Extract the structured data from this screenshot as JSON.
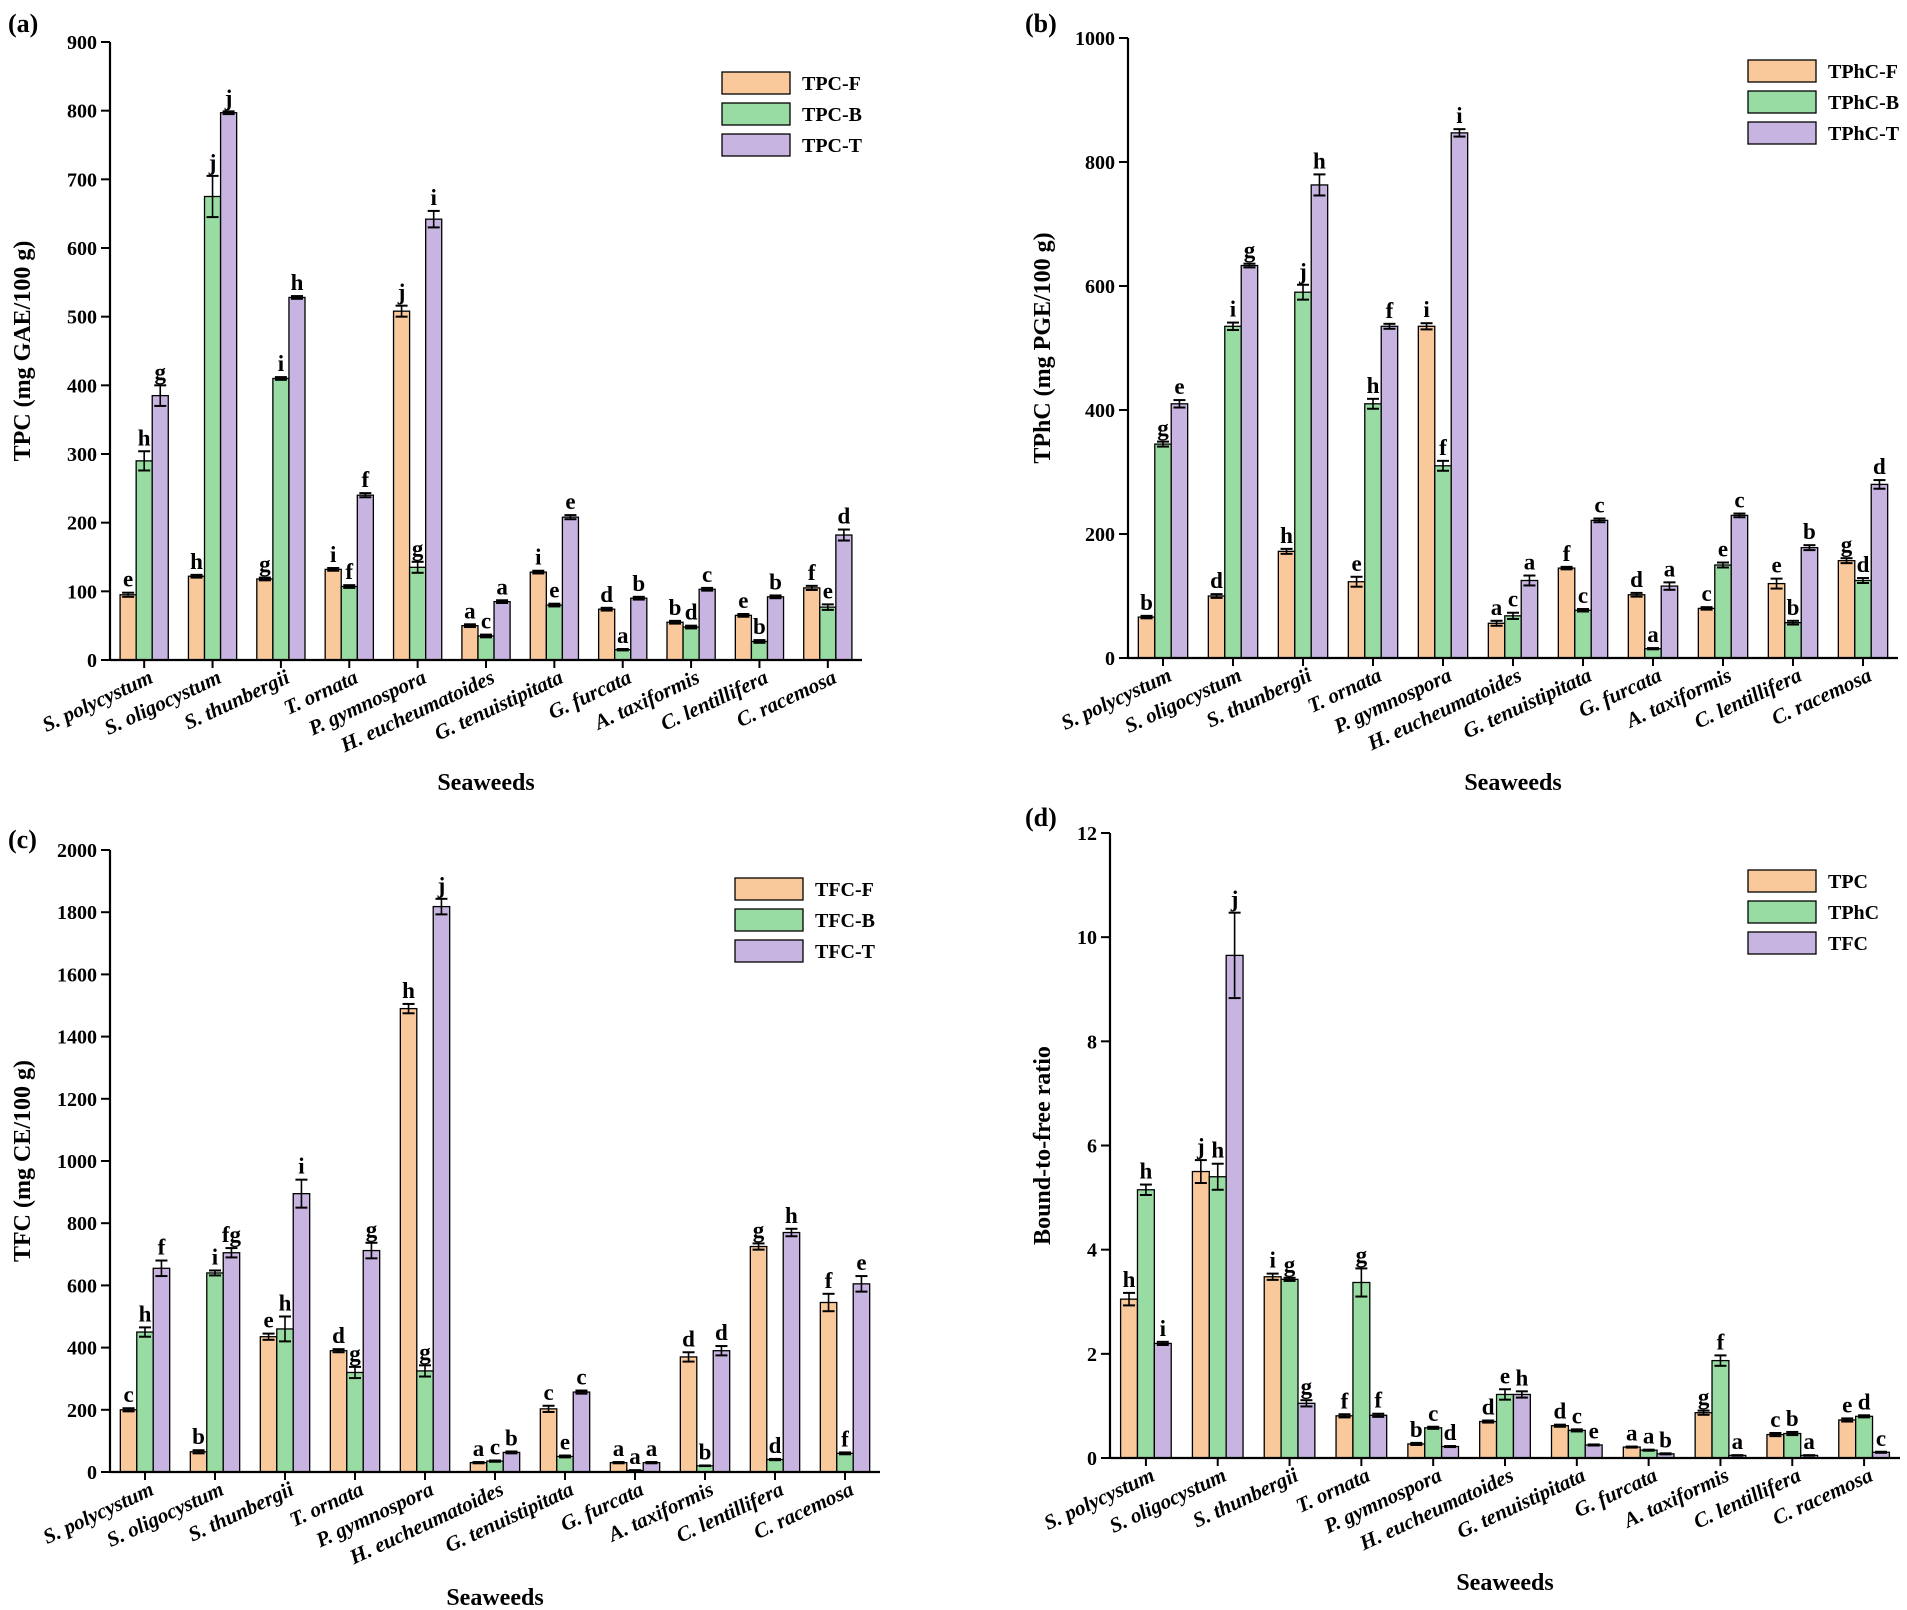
{
  "colors": {
    "F": "#f9c89b",
    "B": "#99dca3",
    "T": "#c7b4e0",
    "edge": "#000000"
  },
  "chart_data": [
    {
      "type": "bar",
      "panel": "(a)",
      "ylabel": "TPC (mg GAE/100 g)",
      "xlabel": "Seaweeds",
      "ylim": [
        0,
        900
      ],
      "yticks": [
        0,
        100,
        200,
        300,
        400,
        500,
        600,
        700,
        800,
        900
      ],
      "legend_position": "top-right",
      "categories": [
        "S. polycystum",
        "S. oligocystum",
        "S. thunbergii",
        "T. ornata",
        "P. gymnospora",
        "H. eucheumatoides",
        "G. tenuistipitata",
        "G. furcata",
        "A. taxiformis",
        "C. lentillifera",
        "C. racemosa"
      ],
      "series": [
        {
          "name": "TPC-F",
          "color_key": "F",
          "values": [
            95,
            122,
            118,
            132,
            508,
            50,
            128,
            74,
            55,
            65,
            105
          ],
          "errors": [
            3,
            2,
            2,
            2,
            8,
            2,
            2,
            2,
            2,
            2,
            3
          ],
          "letters": [
            "e",
            "h",
            "g",
            "i",
            "j",
            "a",
            "i",
            "d",
            "b",
            "e",
            "f"
          ]
        },
        {
          "name": "TPC-B",
          "color_key": "B",
          "values": [
            290,
            675,
            410,
            107,
            135,
            35,
            80,
            15,
            48,
            27,
            77
          ],
          "errors": [
            14,
            30,
            2,
            2,
            8,
            2,
            2,
            1,
            2,
            2,
            4
          ],
          "letters": [
            "h",
            "j",
            "i",
            "f",
            "g",
            "c",
            "e",
            "a",
            "d",
            "b",
            "e"
          ]
        },
        {
          "name": "TPC-T",
          "color_key": "T",
          "values": [
            385,
            797,
            528,
            240,
            642,
            85,
            208,
            90,
            103,
            92,
            182
          ],
          "errors": [
            15,
            2,
            2,
            3,
            12,
            2,
            3,
            2,
            2,
            2,
            8
          ],
          "letters": [
            "g",
            "j",
            "h",
            "f",
            "i",
            "a",
            "e",
            "b",
            "c",
            "b",
            "d"
          ]
        }
      ]
    },
    {
      "type": "bar",
      "panel": "(b)",
      "ylabel": "TPhC (mg PGE/100 g)",
      "xlabel": "Seaweeds",
      "ylim": [
        0,
        1000
      ],
      "yticks": [
        0,
        200,
        400,
        600,
        800,
        1000
      ],
      "legend_position": "top-right",
      "categories": [
        "S. polycystum",
        "S. oligocystum",
        "S. thunbergii",
        "T. ornata",
        "P. gymnospora",
        "H. eucheumatoides",
        "G. tenuistipitata",
        "G. furcata",
        "A. taxiformis",
        "C. lentillifera",
        "C. racemosa"
      ],
      "series": [
        {
          "name": "TPhC-F",
          "color_key": "F",
          "values": [
            66,
            100,
            172,
            123,
            535,
            56,
            145,
            102,
            80,
            120,
            157
          ],
          "errors": [
            2,
            3,
            4,
            8,
            5,
            4,
            2,
            3,
            2,
            8,
            4
          ],
          "letters": [
            "b",
            "d",
            "h",
            "e",
            "i",
            "a",
            "f",
            "d",
            "c",
            "e",
            "g"
          ]
        },
        {
          "name": "TPhC-B",
          "color_key": "B",
          "values": [
            345,
            535,
            590,
            410,
            310,
            68,
            77,
            15,
            150,
            57,
            125
          ],
          "errors": [
            4,
            6,
            12,
            8,
            8,
            5,
            2,
            1,
            4,
            3,
            4
          ],
          "letters": [
            "g",
            "i",
            "j",
            "h",
            "f",
            "c",
            "c",
            "a",
            "e",
            "b",
            "d"
          ]
        },
        {
          "name": "TPhC-T",
          "color_key": "T",
          "values": [
            410,
            633,
            763,
            535,
            847,
            125,
            222,
            116,
            230,
            178,
            280
          ],
          "errors": [
            6,
            3,
            17,
            4,
            6,
            8,
            3,
            6,
            3,
            4,
            7
          ],
          "letters": [
            "e",
            "g",
            "h",
            "f",
            "i",
            "a",
            "c",
            "a",
            "c",
            "b",
            "d"
          ]
        }
      ]
    },
    {
      "type": "bar",
      "panel": "(c)",
      "ylabel": "TFC (mg CE/100 g)",
      "xlabel": "Seaweeds",
      "ylim": [
        0,
        2000
      ],
      "yticks": [
        0,
        200,
        400,
        600,
        800,
        1000,
        1200,
        1400,
        1600,
        1800,
        2000
      ],
      "legend_position": "top-right",
      "categories": [
        "S. polycystum",
        "S. oligocystum",
        "S. thunbergii",
        "T. ornata",
        "P. gymnospora",
        "H. eucheumatoides",
        "G. tenuistipitata",
        "G. furcata",
        "A. taxiformis",
        "C. lentillifera",
        "C. racemosa"
      ],
      "series": [
        {
          "name": "TFC-F",
          "color_key": "F",
          "values": [
            200,
            65,
            435,
            390,
            1490,
            30,
            203,
            30,
            370,
            725,
            545
          ],
          "errors": [
            5,
            5,
            10,
            5,
            15,
            2,
            10,
            2,
            15,
            10,
            28
          ],
          "letters": [
            "c",
            "b",
            "e",
            "d",
            "h",
            "a",
            "c",
            "a",
            "d",
            "g",
            "f"
          ]
        },
        {
          "name": "TFC-B",
          "color_key": "B",
          "values": [
            450,
            640,
            460,
            320,
            325,
            35,
            50,
            5,
            20,
            40,
            60
          ],
          "errors": [
            15,
            8,
            40,
            18,
            18,
            2,
            3,
            1,
            1,
            2,
            3
          ],
          "letters": [
            "h",
            "i",
            "h",
            "g",
            "g",
            "c",
            "e",
            "a",
            "b",
            "d",
            "f"
          ]
        },
        {
          "name": "TFC-T",
          "color_key": "T",
          "values": [
            655,
            705,
            895,
            712,
            1818,
            63,
            257,
            30,
            390,
            770,
            605
          ],
          "errors": [
            25,
            15,
            45,
            25,
            25,
            3,
            5,
            2,
            15,
            12,
            25
          ],
          "letters": [
            "f",
            "fg",
            "i",
            "g",
            "j",
            "b",
            "c",
            "a",
            "d",
            "h",
            "e"
          ]
        }
      ]
    },
    {
      "type": "bar",
      "panel": "(d)",
      "ylabel": "Bound-to-free ratio",
      "xlabel": "Seaweeds",
      "ylim": [
        0,
        12
      ],
      "yticks": [
        0,
        2,
        4,
        6,
        8,
        10,
        12
      ],
      "legend_position": "top-right",
      "categories": [
        "S. polycystum",
        "S. oligocystum",
        "S. thunbergii",
        "T. ornata",
        "P. gymnospora",
        "H. eucheumatoides",
        "G. tenuistipitata",
        "G. furcata",
        "A. taxiformis",
        "C. lentillifera",
        "C. racemosa"
      ],
      "series": [
        {
          "name": "TPC",
          "color_key": "F",
          "values": [
            3.05,
            5.5,
            3.48,
            0.81,
            0.27,
            0.7,
            0.62,
            0.21,
            0.87,
            0.45,
            0.73
          ],
          "errors": [
            0.12,
            0.22,
            0.06,
            0.03,
            0.02,
            0.02,
            0.02,
            0.01,
            0.04,
            0.03,
            0.03
          ],
          "letters": [
            "h",
            "j",
            "i",
            "f",
            "b",
            "d",
            "d",
            "a",
            "g",
            "c",
            "e"
          ]
        },
        {
          "name": "TPhC",
          "color_key": "B",
          "values": [
            5.15,
            5.4,
            3.43,
            3.37,
            0.58,
            1.22,
            0.53,
            0.15,
            1.87,
            0.47,
            0.8
          ],
          "errors": [
            0.1,
            0.25,
            0.03,
            0.27,
            0.02,
            0.1,
            0.02,
            0.01,
            0.1,
            0.03,
            0.02
          ],
          "letters": [
            "h",
            "h",
            "g",
            "g",
            "c",
            "e",
            "c",
            "a",
            "f",
            "b",
            "d"
          ]
        },
        {
          "name": "TFC",
          "color_key": "T",
          "values": [
            2.2,
            9.65,
            1.05,
            0.82,
            0.22,
            1.22,
            0.25,
            0.08,
            0.05,
            0.05,
            0.11
          ],
          "errors": [
            0.03,
            0.82,
            0.06,
            0.03,
            0.01,
            0.06,
            0.01,
            0.01,
            0.005,
            0.005,
            0.01
          ],
          "letters": [
            "i",
            "j",
            "g",
            "f",
            "d",
            "h",
            "e",
            "b",
            "a",
            "a",
            "c"
          ]
        }
      ]
    }
  ]
}
